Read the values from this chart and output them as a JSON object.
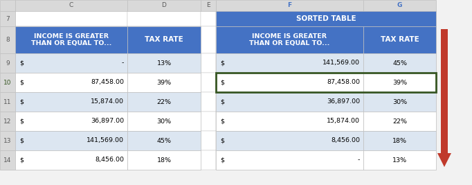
{
  "header_row_color": "#4472c4",
  "data_row_light": "#dce6f1",
  "data_row_white": "#ffffff",
  "border_color": "#bfbfbf",
  "green_border_color": "#375623",
  "col_header_bg": "#d9d9d9",
  "col_header_selected_bg": "#d9d9d9",
  "grid_bg": "#ffffff",
  "fig_bg": "#f2f2f2",
  "arrow_color": "#c0392b",
  "row_num_color": "#595959",
  "col_letter_color": "#595959",
  "col_letter_selected_color": "#4472c4",
  "left_table": {
    "header_col1": "INCOME IS GREATER\nTHAN OR EQUAL TO...",
    "header_col2": "TAX RATE",
    "rows": [
      [
        "-",
        "13%"
      ],
      [
        "87,458.00",
        "39%"
      ],
      [
        "15,874.00",
        "22%"
      ],
      [
        "36,897.00",
        "30%"
      ],
      [
        "141,569.00",
        "45%"
      ],
      [
        "8,456.00",
        "18%"
      ]
    ]
  },
  "right_table": {
    "title": "SORTED TABLE",
    "header_col1": "INCOME IS GREATER\nTHAN OR EQUAL TO...",
    "header_col2": "TAX RATE",
    "rows": [
      [
        "141,569.00",
        "45%"
      ],
      [
        "87,458.00",
        "39%"
      ],
      [
        "36,897.00",
        "30%"
      ],
      [
        "15,874.00",
        "22%"
      ],
      [
        "8,456.00",
        "18%"
      ],
      [
        "-",
        "13%"
      ]
    ]
  }
}
